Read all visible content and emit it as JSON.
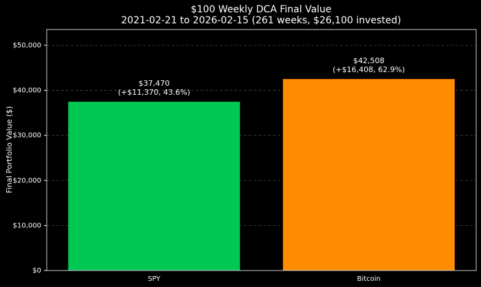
{
  "chart_data": {
    "type": "bar",
    "title": "$100 Weekly DCA Final Value",
    "subtitle": "2021-02-21 to 2026-02-15 (261 weeks, $26,100 invested)",
    "ylabel": "Final Portfolio Value ($)",
    "categories": [
      "SPY",
      "Bitcoin"
    ],
    "values": [
      37470,
      42508
    ],
    "value_labels": [
      "$37,470",
      "$42,508"
    ],
    "gain_labels": [
      "(+$11,370, 43.6%)",
      "(+$16,408, 62.9%)"
    ],
    "colors": [
      "#00c853",
      "#ff8c00"
    ],
    "ylim": [
      0,
      53500
    ],
    "yticks": [
      {
        "value": 0,
        "label": "$0"
      },
      {
        "value": 10000,
        "label": "$10,000"
      },
      {
        "value": 20000,
        "label": "$20,000"
      },
      {
        "value": 30000,
        "label": "$30,000"
      },
      {
        "value": 40000,
        "label": "$40,000"
      },
      {
        "value": 50000,
        "label": "$50,000"
      }
    ],
    "grid": true
  }
}
